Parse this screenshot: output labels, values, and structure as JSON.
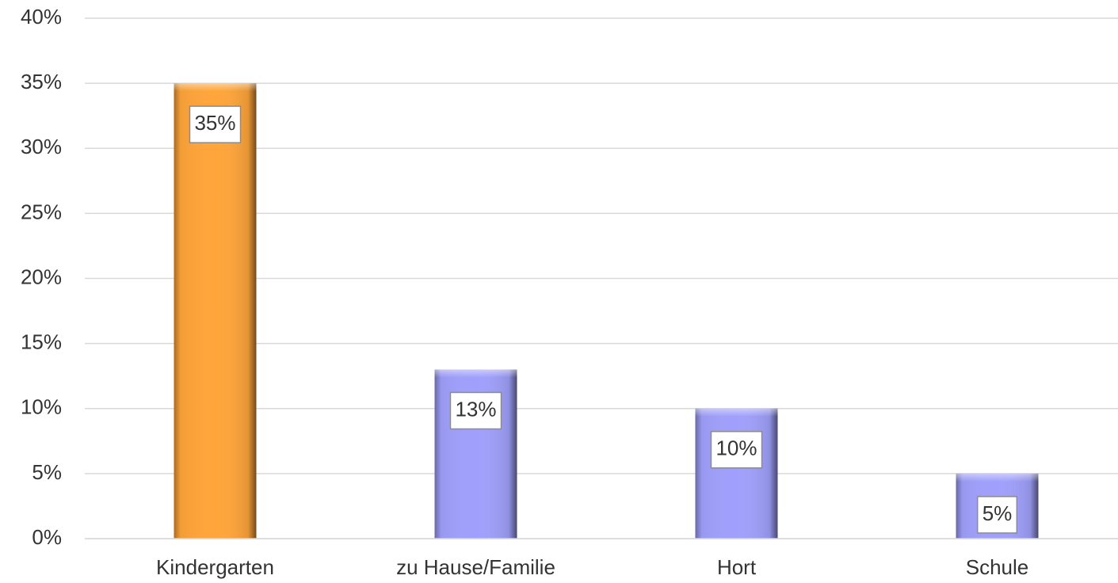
{
  "chart_data": {
    "type": "bar",
    "categories": [
      "Kindergarten",
      "zu Hause/Familie",
      "Hort",
      "Schule"
    ],
    "values": [
      35,
      13,
      10,
      5
    ],
    "value_labels": [
      "35%",
      "13%",
      "10%",
      "5%"
    ],
    "colors": [
      "#ffa53a",
      "#a0a0fc",
      "#a0a0fc",
      "#a0a0fc"
    ],
    "ylim": [
      0,
      40
    ],
    "yticks": [
      {
        "value": 0,
        "label": "0%"
      },
      {
        "value": 5,
        "label": "5%"
      },
      {
        "value": 10,
        "label": "10%"
      },
      {
        "value": 15,
        "label": "15%"
      },
      {
        "value": 20,
        "label": "20%"
      },
      {
        "value": 25,
        "label": "25%"
      },
      {
        "value": 30,
        "label": "30%"
      },
      {
        "value": 35,
        "label": "35%"
      },
      {
        "value": 40,
        "label": "40%"
      }
    ],
    "grid": true
  }
}
